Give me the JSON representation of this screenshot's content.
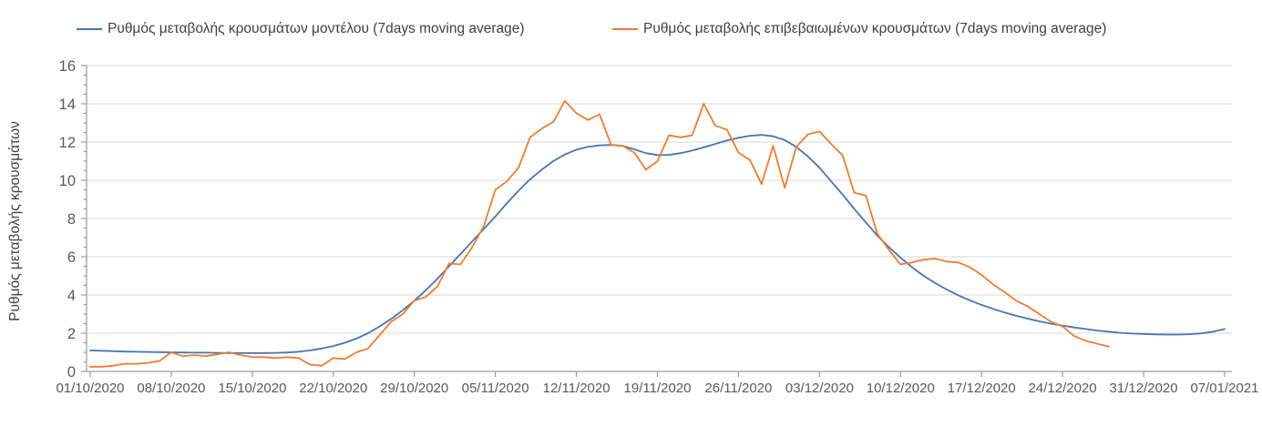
{
  "legend": {
    "items": [
      {
        "label": "Ρυθμός μεταβολής κρουσμάτων μοντέλου (7days moving average)",
        "color": "#4674b4"
      },
      {
        "label": "Ρυθμός μεταβολής επιβεβαιωμένων κρουσμάτων (7days moving average)",
        "color": "#ed7d31"
      }
    ]
  },
  "y_axis": {
    "title": "Ρυθμός μεταβολής κρουσμάτων",
    "min": 0,
    "max": 16,
    "major_step": 2,
    "minor_step": 0.5,
    "tick_labels": [
      "0",
      "2",
      "4",
      "6",
      "8",
      "10",
      "12",
      "14",
      "16"
    ]
  },
  "x_axis": {
    "days_between_ticks": 7,
    "tick_labels": [
      "01/10/2020",
      "08/10/2020",
      "15/10/2020",
      "22/10/2020",
      "29/10/2020",
      "05/11/2020",
      "12/11/2020",
      "19/11/2020",
      "26/11/2020",
      "03/12/2020",
      "10/12/2020",
      "17/12/2020",
      "24/12/2020",
      "31/12/2020",
      "07/01/2021"
    ]
  },
  "colors": {
    "gridline": "#d9d9d9",
    "axis": "#9b9b9b",
    "tick_label": "#595959",
    "legend_text": "#3f3f3f",
    "axis_title": "#404040",
    "background": "#ffffff"
  },
  "chart_data": {
    "type": "line",
    "title": "",
    "xlabel": "",
    "ylabel": "Ρυθμός μεταβολής κρουσμάτων",
    "ylim": [
      0,
      16
    ],
    "grid": "horizontal",
    "legend_position": "top",
    "x_unit": "day",
    "x_start_label": "01/10/2020",
    "x_end_label": "07/01/2021",
    "series": [
      {
        "name": "Ρυθμός μεταβολής κρουσμάτων μοντέλου (7days moving average)",
        "color": "#4674b4",
        "start_day_index": 0,
        "values": [
          1.1,
          1.08,
          1.06,
          1.04,
          1.03,
          1.02,
          1.01,
          1.0,
          0.99,
          0.98,
          0.98,
          0.97,
          0.96,
          0.96,
          0.96,
          0.96,
          0.97,
          0.99,
          1.03,
          1.1,
          1.2,
          1.33,
          1.5,
          1.72,
          2.0,
          2.35,
          2.75,
          3.2,
          3.7,
          4.25,
          4.85,
          5.5,
          6.15,
          6.8,
          7.45,
          8.1,
          8.8,
          9.45,
          10.05,
          10.55,
          11.0,
          11.35,
          11.6,
          11.75,
          11.83,
          11.85,
          11.8,
          11.62,
          11.42,
          11.32,
          11.33,
          11.42,
          11.55,
          11.72,
          11.9,
          12.08,
          12.22,
          12.33,
          12.37,
          12.3,
          12.1,
          11.75,
          11.25,
          10.65,
          9.95,
          9.25,
          8.5,
          7.8,
          7.1,
          6.5,
          5.95,
          5.45,
          5.0,
          4.62,
          4.28,
          3.98,
          3.72,
          3.48,
          3.27,
          3.08,
          2.91,
          2.76,
          2.62,
          2.5,
          2.4,
          2.3,
          2.22,
          2.14,
          2.08,
          2.02,
          1.98,
          1.96,
          1.94,
          1.93,
          1.93,
          1.95,
          1.99,
          2.08,
          2.22
        ]
      },
      {
        "name": "Ρυθμός μεταβολής επιβεβαιωμένων κρουσμάτων (7days moving average)",
        "color": "#ed7d31",
        "start_day_index": 0,
        "values": [
          0.25,
          0.25,
          0.3,
          0.4,
          0.4,
          0.45,
          0.55,
          1.0,
          0.8,
          0.85,
          0.8,
          0.9,
          1.0,
          0.85,
          0.75,
          0.75,
          0.7,
          0.75,
          0.7,
          0.35,
          0.3,
          0.7,
          0.65,
          1.0,
          1.2,
          1.9,
          2.6,
          3.0,
          3.7,
          3.9,
          4.45,
          5.65,
          5.6,
          6.5,
          7.6,
          9.5,
          9.95,
          10.65,
          12.25,
          12.7,
          13.05,
          14.15,
          13.5,
          13.15,
          13.45,
          11.85,
          11.8,
          11.45,
          10.55,
          11.0,
          12.35,
          12.25,
          12.35,
          14.0,
          12.85,
          12.65,
          11.45,
          11.05,
          9.8,
          11.8,
          9.6,
          11.75,
          12.4,
          12.55,
          11.9,
          11.3,
          9.35,
          9.2,
          7.2,
          6.35,
          5.6,
          5.7,
          5.85,
          5.9,
          5.75,
          5.7,
          5.45,
          5.05,
          4.55,
          4.15,
          3.7,
          3.4,
          3.0,
          2.6,
          2.35,
          1.85,
          1.6,
          1.45,
          1.3
        ]
      }
    ]
  }
}
